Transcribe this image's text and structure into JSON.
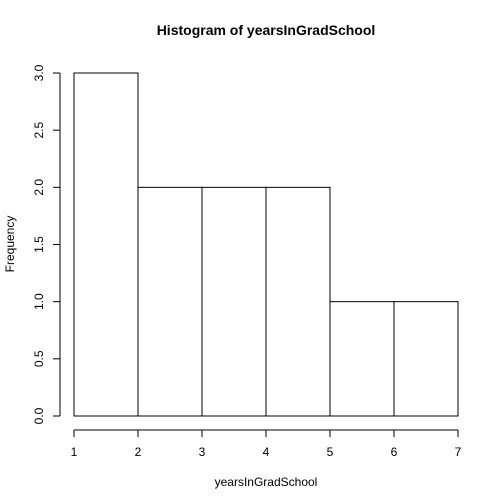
{
  "chart_data": {
    "type": "bar",
    "title": "Histogram of yearsInGradSchool",
    "xlabel": "yearsInGradSchool",
    "ylabel": "Frequency",
    "bins": [
      {
        "from": 1,
        "to": 2,
        "count": 3
      },
      {
        "from": 2,
        "to": 3,
        "count": 2
      },
      {
        "from": 3,
        "to": 4,
        "count": 2
      },
      {
        "from": 4,
        "to": 5,
        "count": 2
      },
      {
        "from": 5,
        "to": 6,
        "count": 1
      },
      {
        "from": 6,
        "to": 7,
        "count": 1
      }
    ],
    "x_ticks": [
      "1",
      "2",
      "3",
      "4",
      "5",
      "6",
      "7"
    ],
    "y_ticks": [
      "0.0",
      "0.5",
      "1.0",
      "1.5",
      "2.0",
      "2.5",
      "3.0"
    ],
    "xlim": [
      1,
      7
    ],
    "ylim": [
      0,
      3
    ],
    "grid": false,
    "bar_fill": "#ffffff",
    "bar_stroke": "#000000"
  }
}
